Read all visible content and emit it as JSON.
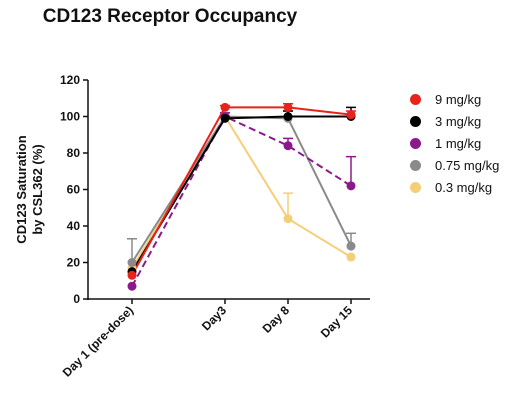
{
  "chart_data": {
    "type": "line",
    "title": "CD123 Receptor Occupancy",
    "ylabel_lines": [
      "CD123 Saturation",
      "by CSL362 (%)"
    ],
    "xlabel": "",
    "categories": [
      "Day 1 (pre-dose)",
      "Day3",
      "Day 8",
      "Day 15"
    ],
    "ylim": [
      0,
      120
    ],
    "yticks": [
      0,
      20,
      40,
      60,
      80,
      100,
      120
    ],
    "grid": false,
    "legend_position": "right",
    "series": [
      {
        "name": "9 mg/kg",
        "color": "#e8231c",
        "dashed": false,
        "values": [
          13,
          105,
          105,
          101
        ],
        "errors": [
          0,
          1,
          2,
          2
        ]
      },
      {
        "name": "3 mg/kg",
        "color": "#000000",
        "dashed": false,
        "values": [
          15,
          99,
          100,
          100
        ],
        "errors": [
          0,
          1,
          3,
          5
        ]
      },
      {
        "name": "1 mg/kg",
        "color": "#8a1a8c",
        "dashed": true,
        "values": [
          7,
          100,
          84,
          62
        ],
        "errors": [
          0,
          2,
          4,
          16
        ]
      },
      {
        "name": "0.75 mg/kg",
        "color": "#8a8a8a",
        "dashed": false,
        "values": [
          20,
          100,
          99,
          29
        ],
        "errors": [
          13,
          2,
          4,
          7
        ]
      },
      {
        "name": "0.3 mg/kg",
        "color": "#f5cf78",
        "dashed": false,
        "values": [
          17,
          100,
          44,
          23
        ],
        "errors": [
          0,
          2,
          14,
          0
        ]
      }
    ]
  }
}
